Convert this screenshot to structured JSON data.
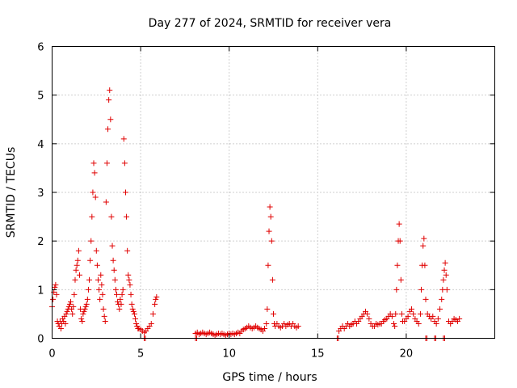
{
  "chart_data": {
    "type": "scatter",
    "title": "Day 277 of 2024, SRMTID for receiver vera",
    "xlabel": "GPS time / hours",
    "ylabel": "SRMTID / TECUs",
    "xlim": [
      0,
      25
    ],
    "ylim": [
      0,
      6
    ],
    "xticks": [
      0,
      5,
      10,
      15,
      20
    ],
    "yticks": [
      0,
      1,
      2,
      3,
      4,
      5,
      6
    ],
    "grid": true,
    "marker": "plus",
    "series": [
      {
        "name": "SRMTID",
        "color": "#e00000",
        "points": [
          [
            0.0,
            0.65
          ],
          [
            0.05,
            0.8
          ],
          [
            0.1,
            0.95
          ],
          [
            0.15,
            1.05
          ],
          [
            0.2,
            1.1
          ],
          [
            0.25,
            0.9
          ],
          [
            0.3,
            0.35
          ],
          [
            0.35,
            0.3
          ],
          [
            0.4,
            0.25
          ],
          [
            0.45,
            0.35
          ],
          [
            0.5,
            0.2
          ],
          [
            0.55,
            0.3
          ],
          [
            0.6,
            0.4
          ],
          [
            0.65,
            0.35
          ],
          [
            0.7,
            0.45
          ],
          [
            0.75,
            0.3
          ],
          [
            0.8,
            0.5
          ],
          [
            0.85,
            0.55
          ],
          [
            0.9,
            0.6
          ],
          [
            0.95,
            0.65
          ],
          [
            1.0,
            0.7
          ],
          [
            1.05,
            0.75
          ],
          [
            1.1,
            0.6
          ],
          [
            1.15,
            0.5
          ],
          [
            1.2,
            0.65
          ],
          [
            1.25,
            0.9
          ],
          [
            1.3,
            1.2
          ],
          [
            1.35,
            1.4
          ],
          [
            1.4,
            1.5
          ],
          [
            1.45,
            1.6
          ],
          [
            1.5,
            1.8
          ],
          [
            1.55,
            1.3
          ],
          [
            1.6,
            0.6
          ],
          [
            1.65,
            0.4
          ],
          [
            1.7,
            0.35
          ],
          [
            1.75,
            0.5
          ],
          [
            1.8,
            0.55
          ],
          [
            1.85,
            0.6
          ],
          [
            1.9,
            0.65
          ],
          [
            1.95,
            0.7
          ],
          [
            2.0,
            0.8
          ],
          [
            2.05,
            1.0
          ],
          [
            2.1,
            1.2
          ],
          [
            2.15,
            1.6
          ],
          [
            2.2,
            2.0
          ],
          [
            2.25,
            2.5
          ],
          [
            2.3,
            3.0
          ],
          [
            2.35,
            3.6
          ],
          [
            2.4,
            3.4
          ],
          [
            2.45,
            2.9
          ],
          [
            2.5,
            1.8
          ],
          [
            2.55,
            1.5
          ],
          [
            2.6,
            1.2
          ],
          [
            2.65,
            1.0
          ],
          [
            2.7,
            0.8
          ],
          [
            2.75,
            1.3
          ],
          [
            2.8,
            1.1
          ],
          [
            2.85,
            0.9
          ],
          [
            2.9,
            0.6
          ],
          [
            2.95,
            0.45
          ],
          [
            3.0,
            0.35
          ],
          [
            3.05,
            2.8
          ],
          [
            3.1,
            3.6
          ],
          [
            3.15,
            4.3
          ],
          [
            3.2,
            4.9
          ],
          [
            3.25,
            5.1
          ],
          [
            3.3,
            4.5
          ],
          [
            3.35,
            2.5
          ],
          [
            3.4,
            1.9
          ],
          [
            3.45,
            1.6
          ],
          [
            3.5,
            1.4
          ],
          [
            3.55,
            1.2
          ],
          [
            3.6,
            1.0
          ],
          [
            3.65,
            0.9
          ],
          [
            3.7,
            0.75
          ],
          [
            3.75,
            0.7
          ],
          [
            3.8,
            0.6
          ],
          [
            3.85,
            0.8
          ],
          [
            3.9,
            0.7
          ],
          [
            3.95,
            0.9
          ],
          [
            4.0,
            1.0
          ],
          [
            4.05,
            4.1
          ],
          [
            4.1,
            3.6
          ],
          [
            4.15,
            3.0
          ],
          [
            4.2,
            2.5
          ],
          [
            4.25,
            1.8
          ],
          [
            4.3,
            1.3
          ],
          [
            4.35,
            1.2
          ],
          [
            4.4,
            1.1
          ],
          [
            4.45,
            0.9
          ],
          [
            4.5,
            0.7
          ],
          [
            4.55,
            0.6
          ],
          [
            4.6,
            0.55
          ],
          [
            4.65,
            0.5
          ],
          [
            4.7,
            0.4
          ],
          [
            4.75,
            0.3
          ],
          [
            4.8,
            0.25
          ],
          [
            4.85,
            0.2
          ],
          [
            4.9,
            0.2
          ],
          [
            5.0,
            0.18
          ],
          [
            5.1,
            0.15
          ],
          [
            5.2,
            0.12
          ],
          [
            5.3,
            0.15
          ],
          [
            5.4,
            0.2
          ],
          [
            5.5,
            0.25
          ],
          [
            5.6,
            0.3
          ],
          [
            5.7,
            0.5
          ],
          [
            5.8,
            0.7
          ],
          [
            5.85,
            0.8
          ],
          [
            5.9,
            0.85
          ],
          [
            8.1,
            0.1
          ],
          [
            8.2,
            0.12
          ],
          [
            8.3,
            0.08
          ],
          [
            8.4,
            0.1
          ],
          [
            8.5,
            0.12
          ],
          [
            8.6,
            0.1
          ],
          [
            8.7,
            0.08
          ],
          [
            8.8,
            0.1
          ],
          [
            8.9,
            0.12
          ],
          [
            9.0,
            0.1
          ],
          [
            9.1,
            0.08
          ],
          [
            9.2,
            0.06
          ],
          [
            9.3,
            0.08
          ],
          [
            9.4,
            0.1
          ],
          [
            9.5,
            0.08
          ],
          [
            9.6,
            0.1
          ],
          [
            9.7,
            0.08
          ],
          [
            9.8,
            0.06
          ],
          [
            9.9,
            0.08
          ],
          [
            10.0,
            0.1
          ],
          [
            10.1,
            0.08
          ],
          [
            10.2,
            0.1
          ],
          [
            10.3,
            0.08
          ],
          [
            10.4,
            0.1
          ],
          [
            10.5,
            0.12
          ],
          [
            10.6,
            0.1
          ],
          [
            10.7,
            0.15
          ],
          [
            10.8,
            0.18
          ],
          [
            10.9,
            0.2
          ],
          [
            11.0,
            0.22
          ],
          [
            11.1,
            0.25
          ],
          [
            11.2,
            0.22
          ],
          [
            11.3,
            0.2
          ],
          [
            11.4,
            0.22
          ],
          [
            11.5,
            0.25
          ],
          [
            11.6,
            0.22
          ],
          [
            11.7,
            0.2
          ],
          [
            11.8,
            0.18
          ],
          [
            11.9,
            0.15
          ],
          [
            12.0,
            0.2
          ],
          [
            12.1,
            0.3
          ],
          [
            12.15,
            0.6
          ],
          [
            12.2,
            1.5
          ],
          [
            12.25,
            2.2
          ],
          [
            12.3,
            2.7
          ],
          [
            12.35,
            2.5
          ],
          [
            12.4,
            2.0
          ],
          [
            12.45,
            1.2
          ],
          [
            12.5,
            0.5
          ],
          [
            12.55,
            0.3
          ],
          [
            12.6,
            0.25
          ],
          [
            12.7,
            0.3
          ],
          [
            12.8,
            0.25
          ],
          [
            12.9,
            0.22
          ],
          [
            13.0,
            0.25
          ],
          [
            13.1,
            0.3
          ],
          [
            13.2,
            0.25
          ],
          [
            13.3,
            0.28
          ],
          [
            13.4,
            0.3
          ],
          [
            13.5,
            0.25
          ],
          [
            13.6,
            0.3
          ],
          [
            13.7,
            0.25
          ],
          [
            13.8,
            0.22
          ],
          [
            13.9,
            0.25
          ],
          [
            16.2,
            0.15
          ],
          [
            16.3,
            0.2
          ],
          [
            16.4,
            0.25
          ],
          [
            16.5,
            0.2
          ],
          [
            16.6,
            0.25
          ],
          [
            16.7,
            0.3
          ],
          [
            16.8,
            0.25
          ],
          [
            16.9,
            0.28
          ],
          [
            17.0,
            0.3
          ],
          [
            17.1,
            0.35
          ],
          [
            17.2,
            0.3
          ],
          [
            17.3,
            0.35
          ],
          [
            17.4,
            0.4
          ],
          [
            17.5,
            0.45
          ],
          [
            17.6,
            0.5
          ],
          [
            17.7,
            0.55
          ],
          [
            17.8,
            0.5
          ],
          [
            17.9,
            0.4
          ],
          [
            18.0,
            0.3
          ],
          [
            18.1,
            0.25
          ],
          [
            18.2,
            0.25
          ],
          [
            18.3,
            0.3
          ],
          [
            18.4,
            0.28
          ],
          [
            18.5,
            0.3
          ],
          [
            18.6,
            0.3
          ],
          [
            18.7,
            0.35
          ],
          [
            18.8,
            0.38
          ],
          [
            18.9,
            0.4
          ],
          [
            19.0,
            0.45
          ],
          [
            19.1,
            0.5
          ],
          [
            19.2,
            0.45
          ],
          [
            19.3,
            0.3
          ],
          [
            19.35,
            0.25
          ],
          [
            19.4,
            0.5
          ],
          [
            19.45,
            1.0
          ],
          [
            19.5,
            1.5
          ],
          [
            19.55,
            2.0
          ],
          [
            19.6,
            2.35
          ],
          [
            19.65,
            2.0
          ],
          [
            19.7,
            1.2
          ],
          [
            19.75,
            0.5
          ],
          [
            19.8,
            0.35
          ],
          [
            19.9,
            0.35
          ],
          [
            20.0,
            0.4
          ],
          [
            20.1,
            0.45
          ],
          [
            20.2,
            0.55
          ],
          [
            20.3,
            0.6
          ],
          [
            20.4,
            0.5
          ],
          [
            20.5,
            0.4
          ],
          [
            20.6,
            0.35
          ],
          [
            20.7,
            0.3
          ],
          [
            20.8,
            0.5
          ],
          [
            20.85,
            1.0
          ],
          [
            20.9,
            1.5
          ],
          [
            20.95,
            1.9
          ],
          [
            21.0,
            2.05
          ],
          [
            21.05,
            1.5
          ],
          [
            21.1,
            0.8
          ],
          [
            21.2,
            0.5
          ],
          [
            21.3,
            0.45
          ],
          [
            21.4,
            0.4
          ],
          [
            21.5,
            0.45
          ],
          [
            21.6,
            0.35
          ],
          [
            21.7,
            0.3
          ],
          [
            21.8,
            0.4
          ],
          [
            21.9,
            0.6
          ],
          [
            22.0,
            0.8
          ],
          [
            22.05,
            1.0
          ],
          [
            22.1,
            1.2
          ],
          [
            22.15,
            1.4
          ],
          [
            22.2,
            1.55
          ],
          [
            22.25,
            1.3
          ],
          [
            22.3,
            1.0
          ],
          [
            22.4,
            0.35
          ],
          [
            22.5,
            0.3
          ],
          [
            22.6,
            0.35
          ],
          [
            22.7,
            0.4
          ],
          [
            22.8,
            0.38
          ],
          [
            22.9,
            0.35
          ],
          [
            23.0,
            0.4
          ]
        ],
        "near_zero_markers": [
          5.2,
          8.1,
          16.1,
          21.1,
          21.6,
          22.1
        ]
      }
    ]
  }
}
